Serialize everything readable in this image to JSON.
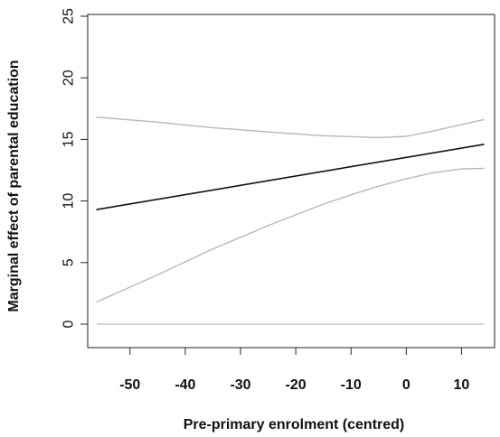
{
  "chart_data": {
    "type": "line",
    "title": "",
    "xlabel": "Pre-primary enrolment (centred)",
    "ylabel": "Marginal effect of parental education",
    "xlim": [
      -57,
      15
    ],
    "ylim": [
      0,
      25
    ],
    "x_ticks": [
      -50,
      -40,
      -30,
      -20,
      -10,
      0,
      10
    ],
    "x_tick_labels": [
      "-50",
      "-40",
      "-30",
      "-20",
      "-10",
      "0",
      "10"
    ],
    "y_ticks": [
      0,
      5,
      10,
      15,
      20,
      25
    ],
    "y_tick_labels": [
      "0",
      "5",
      "10",
      "15",
      "20",
      "25"
    ],
    "grid": false,
    "legend": "none",
    "reference_line": {
      "y": 0,
      "color": "#bbbbbb"
    },
    "series": [
      {
        "role": "estimate",
        "color": "#111111",
        "x": [
          -56,
          14
        ],
        "y": [
          9.3,
          14.6
        ]
      },
      {
        "role": "upper-bound",
        "color": "#b8b8b8",
        "x": [
          -56,
          -45,
          -35,
          -25,
          -15,
          -5,
          0,
          5,
          10,
          14
        ],
        "y": [
          16.8,
          16.4,
          15.95,
          15.6,
          15.3,
          15.15,
          15.25,
          15.7,
          16.2,
          16.6
        ]
      },
      {
        "role": "lower-bound",
        "color": "#b8b8b8",
        "x": [
          -56,
          -45,
          -35,
          -25,
          -15,
          -10,
          -5,
          0,
          5,
          10,
          14
        ],
        "y": [
          1.8,
          4.0,
          6.1,
          8.0,
          9.75,
          10.5,
          11.2,
          11.8,
          12.3,
          12.6,
          12.65
        ]
      }
    ]
  }
}
